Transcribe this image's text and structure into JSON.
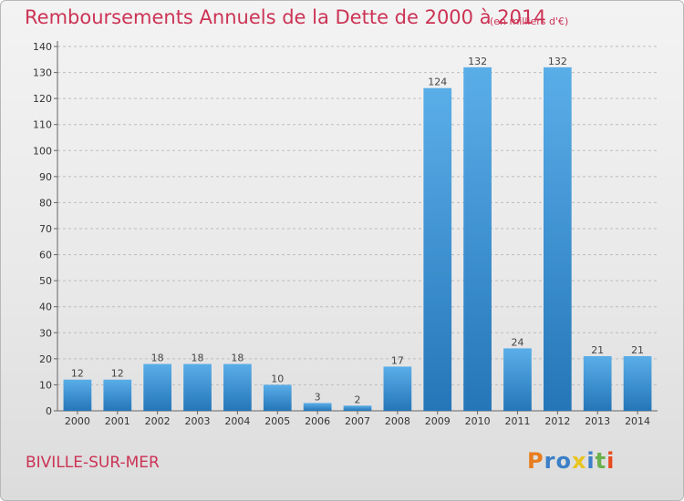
{
  "header": {
    "title": "Remboursements Annuels de la Dette de 2000 à 2014",
    "unit": "(en milliers d'€)"
  },
  "footer": {
    "commune": "BIVILLE-SUR-MER",
    "logo": "Proxiti"
  },
  "colors": {
    "title": "#cc3355",
    "bar_light": "#5aaee8",
    "bar_dark": "#2476b8",
    "grid": "#bdbdbd",
    "logo_letters": [
      "#e87d1e",
      "#3a7fc8",
      "#3a7fc8",
      "#e8c41e",
      "#3a7fc8",
      "#6ab04c",
      "#e84a1e"
    ]
  },
  "chart_data": {
    "type": "bar",
    "title": "Remboursements Annuels de la Dette de 2000 à 2014",
    "xlabel": "",
    "ylabel": "",
    "categories": [
      "2000",
      "2001",
      "2002",
      "2003",
      "2004",
      "2005",
      "2006",
      "2007",
      "2008",
      "2009",
      "2010",
      "2011",
      "2012",
      "2013",
      "2014"
    ],
    "values": [
      12,
      12,
      18,
      18,
      18,
      10,
      3,
      2,
      17,
      124,
      132,
      24,
      132,
      21,
      21
    ],
    "ylim": [
      0,
      140
    ],
    "yticks": [
      0,
      10,
      20,
      30,
      40,
      50,
      60,
      70,
      80,
      90,
      100,
      110,
      120,
      130,
      140
    ],
    "grid": true,
    "data_labels": true
  }
}
